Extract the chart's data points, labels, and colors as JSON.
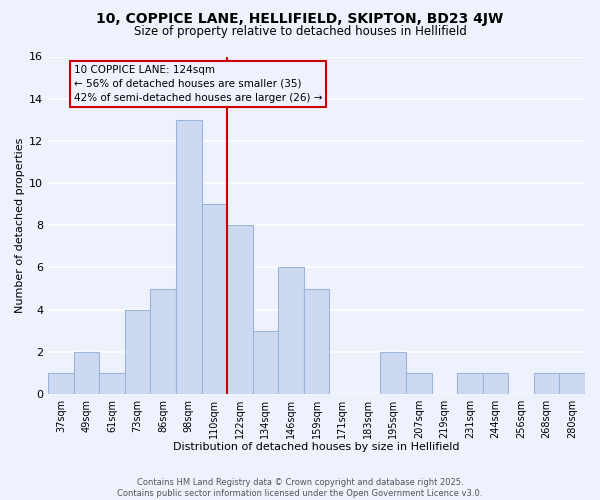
{
  "title": "10, COPPICE LANE, HELLIFIELD, SKIPTON, BD23 4JW",
  "subtitle": "Size of property relative to detached houses in Hellifield",
  "xlabel": "Distribution of detached houses by size in Hellifield",
  "ylabel": "Number of detached properties",
  "bin_labels": [
    "37sqm",
    "49sqm",
    "61sqm",
    "73sqm",
    "86sqm",
    "98sqm",
    "110sqm",
    "122sqm",
    "134sqm",
    "146sqm",
    "159sqm",
    "171sqm",
    "183sqm",
    "195sqm",
    "207sqm",
    "219sqm",
    "231sqm",
    "244sqm",
    "256sqm",
    "268sqm",
    "280sqm"
  ],
  "bar_heights": [
    1,
    2,
    1,
    4,
    5,
    13,
    9,
    8,
    3,
    6,
    5,
    0,
    0,
    2,
    1,
    0,
    1,
    1,
    0,
    1,
    1
  ],
  "bar_color": "#cdd9f0",
  "bar_edge_color": "#9ab5d9",
  "vline_color": "#cc0000",
  "vline_x_index": 6.5,
  "annotation_text_line1": "10 COPPICE LANE: 124sqm",
  "annotation_text_line2": "← 56% of detached houses are smaller (35)",
  "annotation_text_line3": "42% of semi-detached houses are larger (26) →",
  "ylim": [
    0,
    16
  ],
  "yticks": [
    0,
    2,
    4,
    6,
    8,
    10,
    12,
    14,
    16
  ],
  "bg_color": "#eef2fc",
  "grid_color": "white",
  "footer_line1": "Contains HM Land Registry data © Crown copyright and database right 2025.",
  "footer_line2": "Contains public sector information licensed under the Open Government Licence v3.0."
}
